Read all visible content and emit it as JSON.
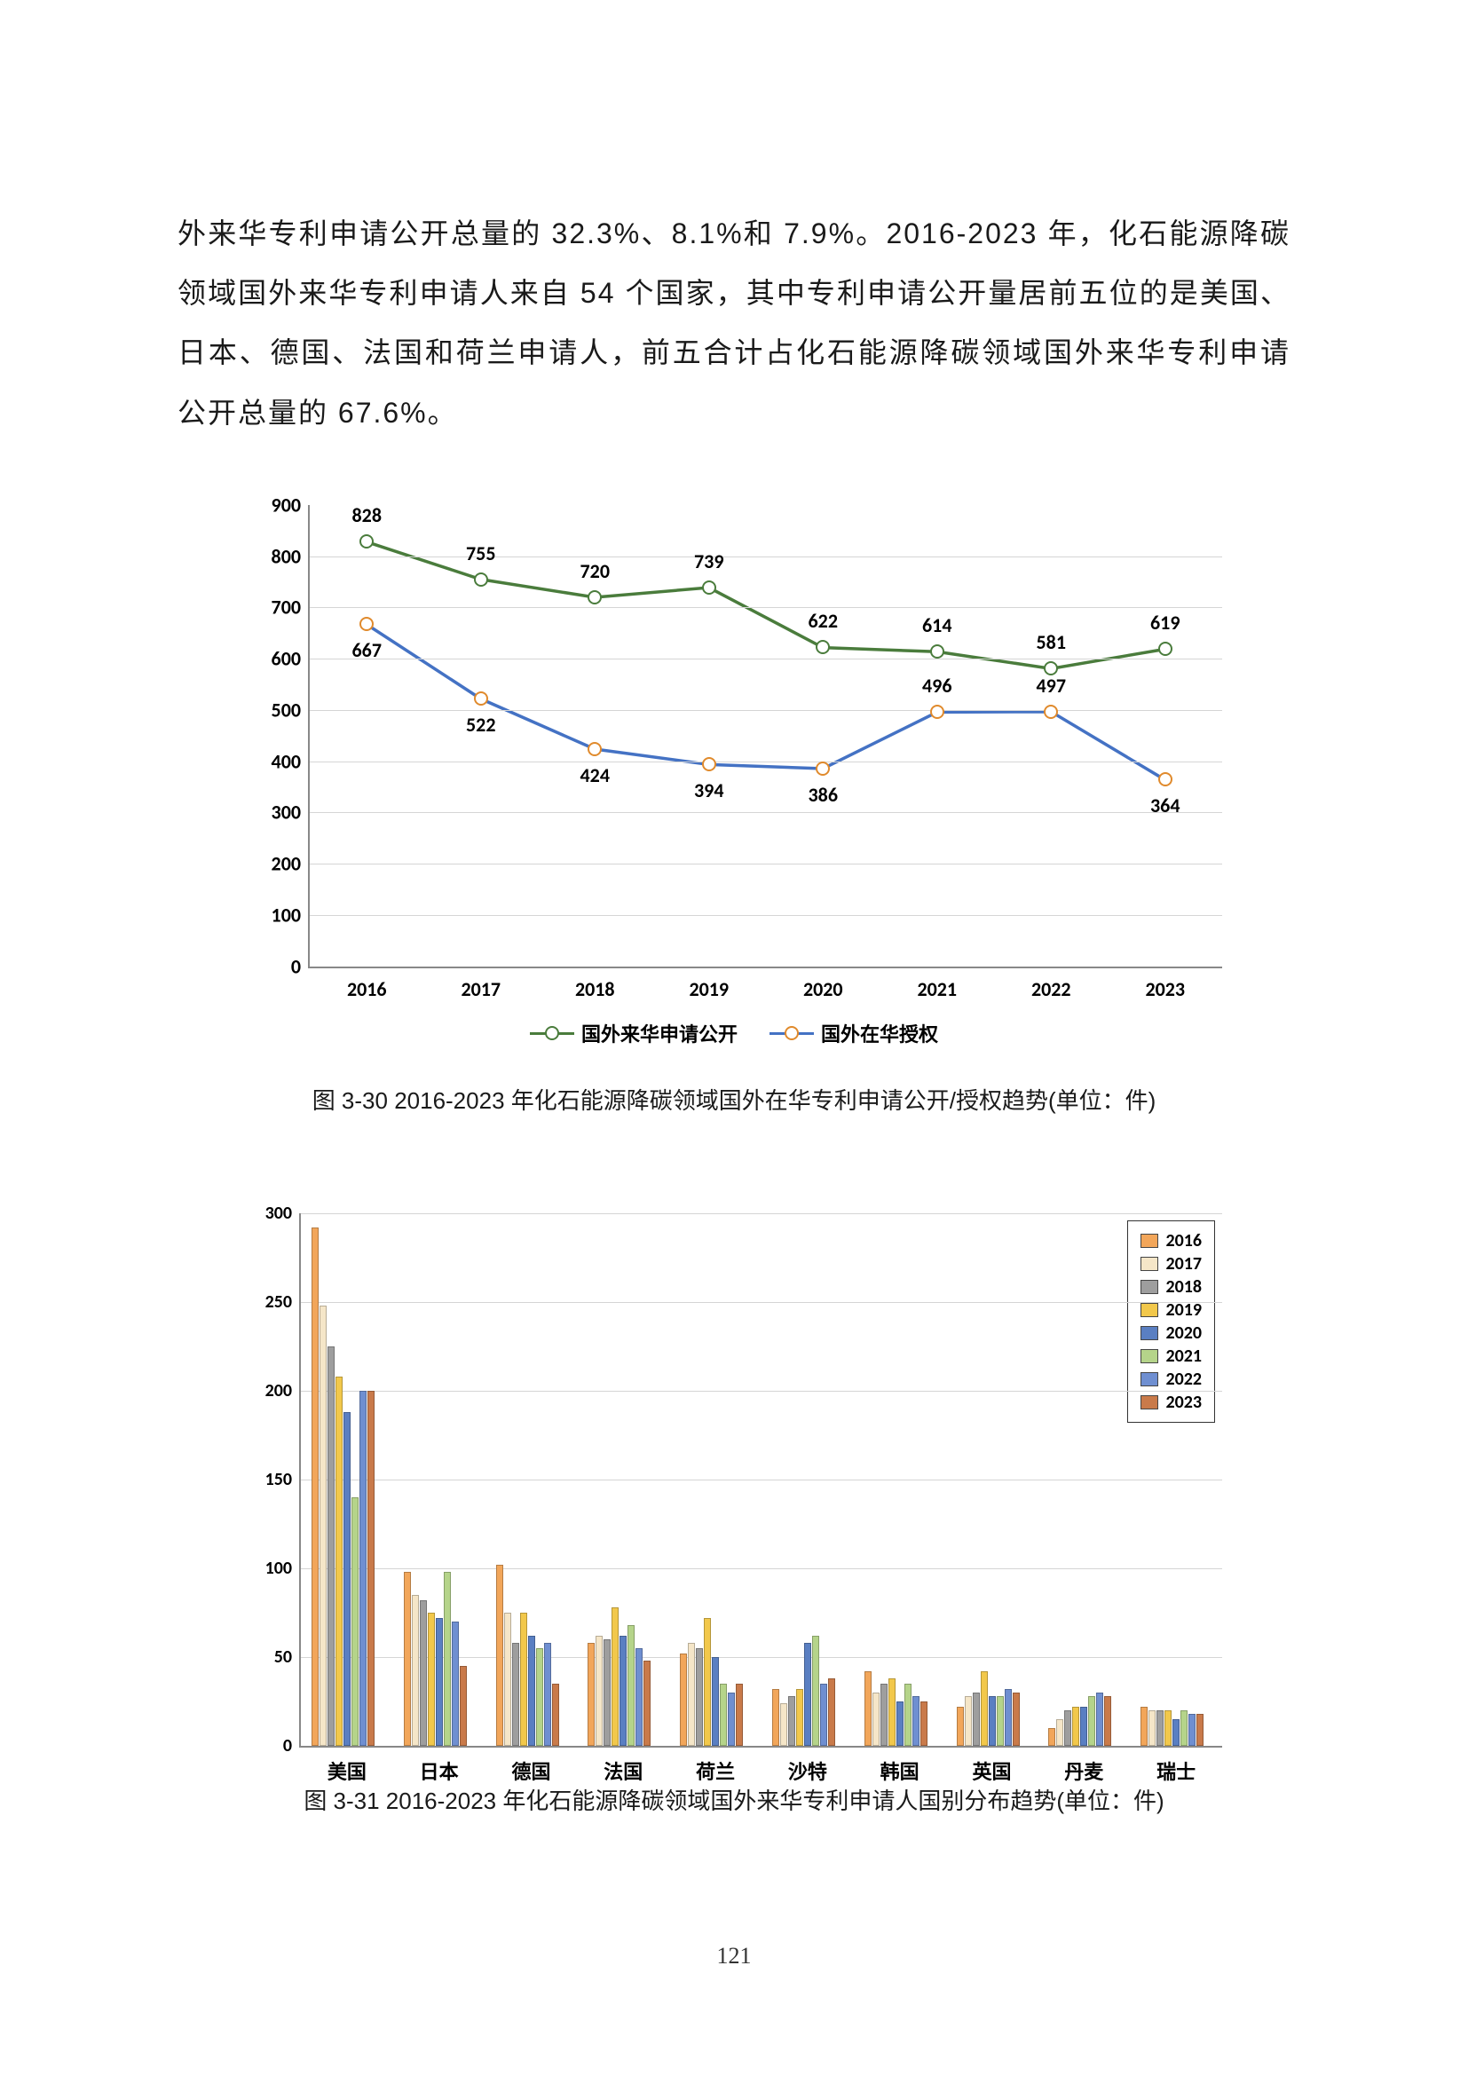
{
  "paragraph": "外来华专利申请公开总量的 32.3%、8.1%和 7.9%。2016-2023 年，化石能源降碳领域国外来华专利申请人来自 54 个国家，其中专利申请公开量居前五位的是美国、日本、德国、法国和荷兰申请人，前五合计占化石能源降碳领域国外来华专利申请公开总量的 67.6%。",
  "caption1": "图 3-30 2016-2023 年化石能源降碳领域国外在华专利申请公开/授权趋势(单位：件)",
  "caption2": "图 3-31 2016-2023 年化石能源降碳领域国外来华专利申请人国别分布趋势(单位：件)",
  "pagenum": "121",
  "chart1": {
    "ymax": 900,
    "ytick": 100,
    "years": [
      "2016",
      "2017",
      "2018",
      "2019",
      "2020",
      "2021",
      "2022",
      "2023"
    ],
    "series": [
      {
        "name": "国外来华申请公开",
        "color": "#4a7c3c",
        "vals": [
          828,
          755,
          720,
          739,
          622,
          614,
          581,
          619
        ],
        "labelPos": [
          "above",
          "above",
          "above",
          "above",
          "above",
          "above",
          "above",
          "above"
        ]
      },
      {
        "name": "国外在华授权",
        "color": "#e08a2c",
        "line": "#4472c4",
        "vals": [
          667,
          522,
          424,
          394,
          386,
          496,
          497,
          364
        ],
        "labelPos": [
          "below",
          "below",
          "below",
          "below",
          "below",
          "above",
          "above",
          "below"
        ]
      }
    ],
    "legend": [
      "国外来华申请公开",
      "国外在华授权"
    ]
  },
  "chart2": {
    "ymax": 300,
    "ytick": 50,
    "countries": [
      "美国",
      "日本",
      "德国",
      "法国",
      "荷兰",
      "沙特",
      "韩国",
      "英国",
      "丹麦",
      "瑞士"
    ],
    "years": [
      "2016",
      "2017",
      "2018",
      "2019",
      "2020",
      "2021",
      "2022",
      "2023"
    ],
    "colors": [
      "#f2a65a",
      "#f5e6c8",
      "#9e9e9e",
      "#f2c84b",
      "#5a7fc2",
      "#b5d48a",
      "#6f8fd1",
      "#c97a4a"
    ],
    "data": [
      [
        292,
        248,
        225,
        208,
        188,
        140,
        200,
        200
      ],
      [
        98,
        85,
        82,
        75,
        72,
        98,
        70,
        45
      ],
      [
        102,
        75,
        58,
        75,
        62,
        55,
        58,
        35
      ],
      [
        58,
        62,
        60,
        78,
        62,
        68,
        55,
        48
      ],
      [
        52,
        58,
        55,
        72,
        50,
        35,
        30,
        35
      ],
      [
        32,
        24,
        28,
        32,
        58,
        62,
        35,
        38
      ],
      [
        42,
        30,
        35,
        38,
        25,
        35,
        28,
        25
      ],
      [
        22,
        28,
        30,
        42,
        28,
        28,
        32,
        30
      ],
      [
        10,
        15,
        20,
        22,
        22,
        28,
        30,
        28
      ],
      [
        22,
        20,
        20,
        20,
        15,
        20,
        18,
        18
      ]
    ]
  }
}
